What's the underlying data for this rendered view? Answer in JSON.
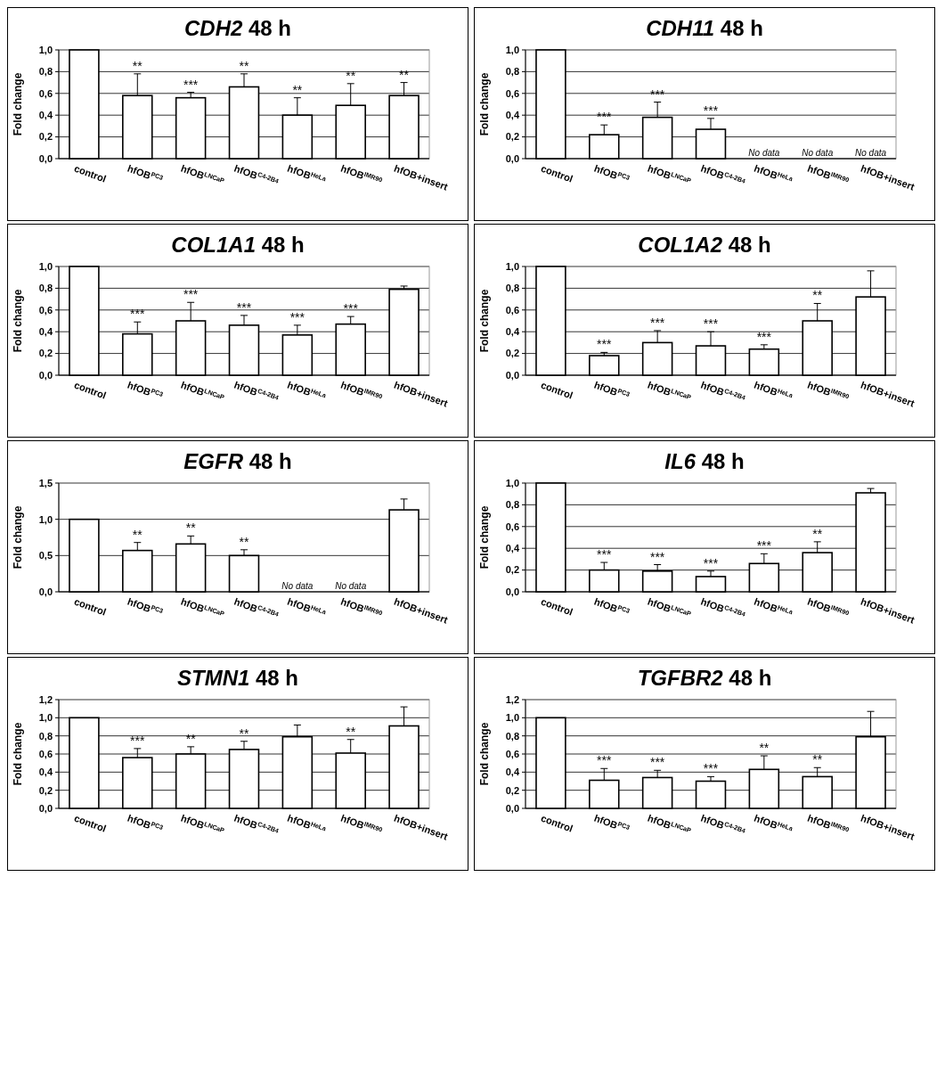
{
  "chart_data": [
    {
      "type": "bar",
      "title": "CDH2 48 h",
      "ylabel": "Fold change",
      "categories": [
        "control",
        "hfOB$^{PC3}$",
        "hfOB$^{LNCaP}$",
        "hfOB$^{C4-2B4}$",
        "hfOB$^{HeLa}$",
        "hfOB$^{IMR90}$",
        "hfOB+insert"
      ],
      "values": [
        1,
        0.58,
        0.56,
        0.66,
        0.4,
        0.49,
        0.58
      ],
      "errors": [
        null,
        [
          0.58,
          0.78
        ],
        [
          0.56,
          0.61
        ],
        [
          0.66,
          0.78
        ],
        [
          0.4,
          0.56
        ],
        [
          0.49,
          0.69
        ],
        [
          0.58,
          0.7
        ]
      ],
      "value_labels": [
        null,
        "**",
        "***",
        "**",
        "**",
        "**",
        "**"
      ],
      "color": "#ffffff",
      "ylim": [
        0,
        1
      ],
      "yticks": [
        {
          "value": 0,
          "label": "0,0"
        },
        {
          "value": 0.2,
          "label": "0,2"
        },
        {
          "value": 0.4,
          "label": "0,4"
        },
        {
          "value": 0.6,
          "label": "0,6"
        },
        {
          "value": 0.8,
          "label": "0,8"
        },
        {
          "value": 1,
          "label": "1,0"
        }
      ],
      "grid": "y"
    },
    {
      "type": "bar",
      "title": "CDH11 48 h",
      "ylabel": "Fold change",
      "categories": [
        "control",
        "hfOB$^{PC3}$",
        "hfOB$^{LNCaP}$",
        "hfOB$^{C4-2B4}$",
        "hfOB$^{HeLa}$",
        "hfOB$^{IMR90}$",
        "hfOB+insert"
      ],
      "values": [
        1,
        0.22,
        0.38,
        0.27,
        null,
        null,
        null
      ],
      "errors": [
        null,
        [
          0.22,
          0.31
        ],
        [
          0.38,
          0.52
        ],
        [
          0.27,
          0.37
        ],
        null,
        null,
        null
      ],
      "value_labels": [
        null,
        "***",
        "***",
        "***",
        null,
        null,
        null
      ],
      "color": "#ffffff",
      "ylim": [
        0,
        1
      ],
      "yticks": [
        {
          "value": 0,
          "label": "0,0"
        },
        {
          "value": 0.2,
          "label": "0,2"
        },
        {
          "value": 0.4,
          "label": "0,4"
        },
        {
          "value": 0.6,
          "label": "0,6"
        },
        {
          "value": 0.8,
          "label": "0,8"
        },
        {
          "value": 1,
          "label": "1,0"
        }
      ],
      "grid": "y",
      "annotations": [
        "No data",
        "No data",
        "No data"
      ]
    },
    {
      "type": "bar",
      "title": "COL1A1 48 h",
      "ylabel": "Fold change",
      "categories": [
        "control",
        "hfOB$^{PC3}$",
        "hfOB$^{LNCaP}$",
        "hfOB$^{C4-2B4}$",
        "hfOB$^{HeLa}$",
        "hfOB$^{IMR90}$",
        "hfOB+insert"
      ],
      "values": [
        1,
        0.38,
        0.5,
        0.46,
        0.37,
        0.47,
        0.79
      ],
      "errors": [
        null,
        [
          0.38,
          0.49
        ],
        [
          0.5,
          0.67
        ],
        [
          0.46,
          0.55
        ],
        [
          0.37,
          0.46
        ],
        [
          0.47,
          0.54
        ],
        [
          0.79,
          0.82
        ]
      ],
      "value_labels": [
        null,
        "***",
        "***",
        "***",
        "***",
        "***",
        null
      ],
      "color": "#ffffff",
      "ylim": [
        0,
        1
      ],
      "yticks": [
        {
          "value": 0,
          "label": "0,0"
        },
        {
          "value": 0.2,
          "label": "0,2"
        },
        {
          "value": 0.4,
          "label": "0,4"
        },
        {
          "value": 0.6,
          "label": "0,6"
        },
        {
          "value": 0.8,
          "label": "0,8"
        },
        {
          "value": 1,
          "label": "1,0"
        }
      ],
      "grid": "y"
    },
    {
      "type": "bar",
      "title": "COL1A2 48 h",
      "ylabel": "Fold change",
      "categories": [
        "control",
        "hfOB$^{PC3}$",
        "hfOB$^{LNCaP}$",
        "hfOB$^{C4-2B4}$",
        "hfOB$^{HeLa}$",
        "hfOB$^{IMR90}$",
        "hfOB+insert"
      ],
      "values": [
        1,
        0.18,
        0.3,
        0.27,
        0.24,
        0.5,
        0.72
      ],
      "errors": [
        null,
        [
          0.18,
          0.21
        ],
        [
          0.3,
          0.41
        ],
        [
          0.27,
          0.4
        ],
        [
          0.24,
          0.28
        ],
        [
          0.5,
          0.66
        ],
        [
          0.72,
          0.96
        ]
      ],
      "value_labels": [
        null,
        "***",
        "***",
        "***",
        "***",
        "**",
        null
      ],
      "color": "#ffffff",
      "ylim": [
        0,
        1
      ],
      "yticks": [
        {
          "value": 0,
          "label": "0,0"
        },
        {
          "value": 0.2,
          "label": "0,2"
        },
        {
          "value": 0.4,
          "label": "0,4"
        },
        {
          "value": 0.6,
          "label": "0,6"
        },
        {
          "value": 0.8,
          "label": "0,8"
        },
        {
          "value": 1,
          "label": "1,0"
        }
      ],
      "grid": "y"
    },
    {
      "type": "bar",
      "title": "EGFR 48 h",
      "ylabel": "Fold change",
      "categories": [
        "control",
        "hfOB$^{PC3}$",
        "hfOB$^{LNCaP}$",
        "hfOB$^{C4-2B4}$",
        "hfOB$^{HeLa}$",
        "hfOB$^{IMR90}$",
        "hfOB+insert"
      ],
      "values": [
        1,
        0.57,
        0.66,
        0.5,
        null,
        null,
        1.13
      ],
      "errors": [
        null,
        [
          0.57,
          0.68
        ],
        [
          0.66,
          0.77
        ],
        [
          0.5,
          0.58
        ],
        null,
        null,
        [
          1.13,
          1.28
        ]
      ],
      "value_labels": [
        null,
        "**",
        "**",
        "**",
        null,
        null,
        null
      ],
      "color": "#ffffff",
      "ylim": [
        0,
        1.5
      ],
      "yticks": [
        {
          "value": 0,
          "label": "0,0"
        },
        {
          "value": 0.5,
          "label": "0,5"
        },
        {
          "value": 1,
          "label": "1,0"
        },
        {
          "value": 1.5,
          "label": "1,5"
        }
      ],
      "grid": "y",
      "annotations": [
        "No data",
        "No data"
      ]
    },
    {
      "type": "bar",
      "title": "IL6 48 h",
      "ylabel": "Fold change",
      "categories": [
        "control",
        "hfOB$^{PC3}$",
        "hfOB$^{LNCaP}$",
        "hfOB$^{C4-2B4}$",
        "hfOB$^{HeLa}$",
        "hfOB$^{IMR90}$",
        "hfOB+insert"
      ],
      "values": [
        1,
        0.2,
        0.19,
        0.14,
        0.26,
        0.36,
        0.91
      ],
      "errors": [
        null,
        [
          0.2,
          0.27
        ],
        [
          0.19,
          0.25
        ],
        [
          0.14,
          0.19
        ],
        [
          0.26,
          0.35
        ],
        [
          0.36,
          0.46
        ],
        [
          0.91,
          0.95
        ]
      ],
      "value_labels": [
        null,
        "***",
        "***",
        "***",
        "***",
        "**",
        null
      ],
      "color": "#ffffff",
      "ylim": [
        0,
        1
      ],
      "yticks": [
        {
          "value": 0,
          "label": "0,0"
        },
        {
          "value": 0.2,
          "label": "0,2"
        },
        {
          "value": 0.4,
          "label": "0,4"
        },
        {
          "value": 0.6,
          "label": "0,6"
        },
        {
          "value": 0.8,
          "label": "0,8"
        },
        {
          "value": 1,
          "label": "1,0"
        }
      ],
      "grid": "y"
    },
    {
      "type": "bar",
      "title": "STMN1 48 h",
      "ylabel": "Fold change",
      "categories": [
        "control",
        "hfOB$^{PC3}$",
        "hfOB$^{LNCaP}$",
        "hfOB$^{C4-2B4}$",
        "hfOB$^{HeLa}$",
        "hfOB$^{IMR90}$",
        "hfOB+insert"
      ],
      "values": [
        1,
        0.56,
        0.6,
        0.65,
        0.79,
        0.61,
        0.91
      ],
      "errors": [
        null,
        [
          0.56,
          0.66
        ],
        [
          0.6,
          0.68
        ],
        [
          0.65,
          0.74
        ],
        [
          0.79,
          0.92
        ],
        [
          0.61,
          0.76
        ],
        [
          0.91,
          1.12
        ]
      ],
      "value_labels": [
        null,
        "***",
        "**",
        "**",
        null,
        "**",
        null
      ],
      "color": "#ffffff",
      "ylim": [
        0,
        1.2
      ],
      "yticks": [
        {
          "value": 0,
          "label": "0,0"
        },
        {
          "value": 0.2,
          "label": "0,2"
        },
        {
          "value": 0.4,
          "label": "0,4"
        },
        {
          "value": 0.6,
          "label": "0,6"
        },
        {
          "value": 0.8,
          "label": "0,8"
        },
        {
          "value": 1,
          "label": "1,0"
        },
        {
          "value": 1.2,
          "label": "1,2"
        }
      ],
      "grid": "y"
    },
    {
      "type": "bar",
      "title": "TGFBR2 48 h",
      "ylabel": "Fold change",
      "categories": [
        "control",
        "hfOB$^{PC3}$",
        "hfOB$^{LNCaP}$",
        "hfOB$^{C4-2B4}$",
        "hfOB$^{HeLa}$",
        "hfOB$^{IMR90}$",
        "hfOB+insert"
      ],
      "values": [
        1,
        0.31,
        0.34,
        0.3,
        0.43,
        0.35,
        0.79
      ],
      "errors": [
        null,
        [
          0.31,
          0.44
        ],
        [
          0.34,
          0.42
        ],
        [
          0.3,
          0.35
        ],
        [
          0.43,
          0.58
        ],
        [
          0.35,
          0.45
        ],
        [
          0.79,
          1.07
        ]
      ],
      "value_labels": [
        null,
        "***",
        "***",
        "***",
        "**",
        "**",
        null
      ],
      "color": "#ffffff",
      "ylim": [
        0,
        1.2
      ],
      "yticks": [
        {
          "value": 0,
          "label": "0,0"
        },
        {
          "value": 0.2,
          "label": "0,2"
        },
        {
          "value": 0.4,
          "label": "0,4"
        },
        {
          "value": 0.6,
          "label": "0,6"
        },
        {
          "value": 0.8,
          "label": "0,8"
        },
        {
          "value": 1,
          "label": "1,0"
        },
        {
          "value": 1.2,
          "label": "1,2"
        }
      ],
      "grid": "y"
    }
  ]
}
